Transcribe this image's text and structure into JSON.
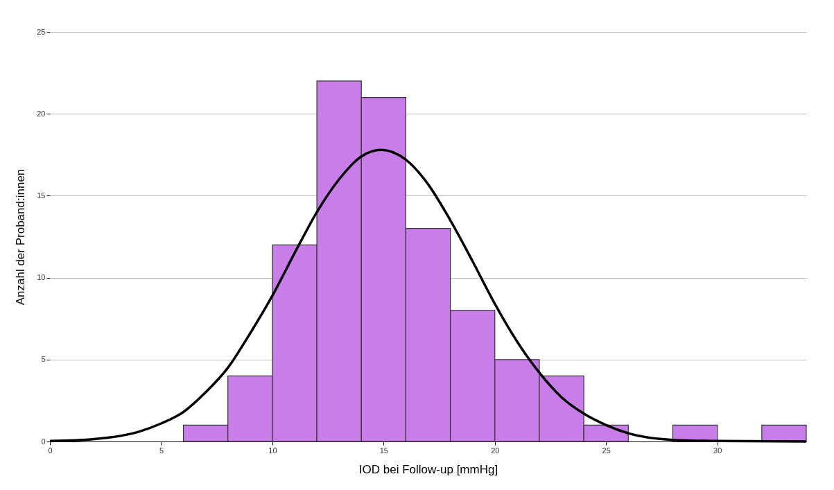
{
  "chart_data": {
    "type": "histogram",
    "xlabel": "IOD bei Follow-up  [mmHg]",
    "ylabel": "Anzahl der Proband:innen",
    "bins": [
      6,
      8,
      10,
      12,
      14,
      16,
      18,
      20,
      22,
      24,
      26,
      28,
      30,
      32,
      34
    ],
    "series": [
      {
        "color": "#c87de8",
        "values": [
          1,
          4,
          12,
          22,
          21,
          13,
          8,
          5,
          4,
          1,
          0,
          1,
          0,
          1
        ]
      },
      {
        "type": "line",
        "color": "#000000",
        "x": [
          0,
          2,
          4,
          5,
          6,
          7,
          8,
          9,
          10,
          11,
          12,
          13,
          14,
          14.9,
          16,
          17,
          18,
          19,
          20,
          21,
          22,
          23,
          24,
          25,
          26,
          28,
          30,
          34
        ],
        "values": [
          0.03,
          0.15,
          0.6,
          1.1,
          1.8,
          3,
          4.5,
          6.6,
          8.9,
          11.5,
          14,
          16,
          17.4,
          17.8,
          17.2,
          15.7,
          13.5,
          11,
          8.4,
          6.1,
          4.2,
          2.7,
          1.7,
          1,
          0.5,
          0.1,
          0.03,
          0
        ]
      }
    ],
    "xlim": [
      0,
      34
    ],
    "xticks": [
      0,
      5,
      10,
      15,
      20,
      25,
      30
    ],
    "ylim": [
      0,
      25
    ],
    "yticks": [
      0,
      5,
      10,
      15,
      20,
      25
    ],
    "grid": "y"
  }
}
